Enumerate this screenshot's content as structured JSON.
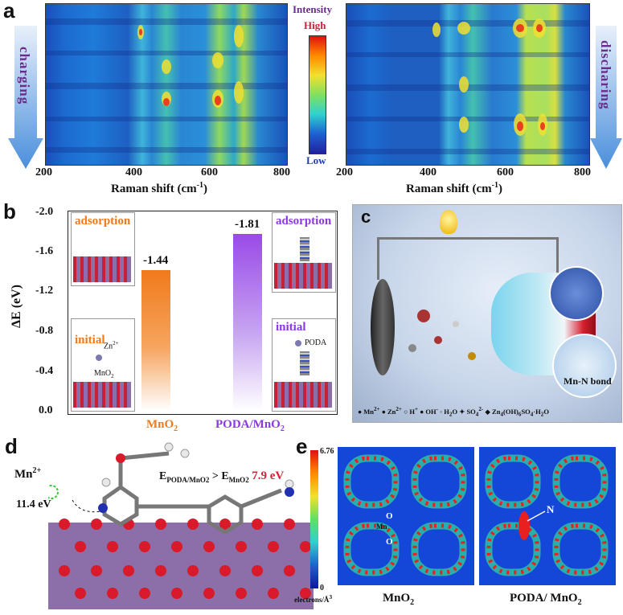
{
  "panel_a": {
    "label": "a",
    "left_arrow_text": "charging",
    "right_arrow_text": "discharing",
    "colorbar": {
      "title": "Intensity",
      "high": "High",
      "low": "Low"
    },
    "left_ticks": [
      "200",
      "400",
      "600",
      "800"
    ],
    "right_ticks": [
      "200",
      "400",
      "600",
      "800"
    ],
    "xlabel_left": "Raman shift (cm",
    "xlabel_right": "Raman shift (cm",
    "xlabel_sup": "-1",
    "xlabel_close": ")"
  },
  "panel_b": {
    "label": "b",
    "ylabel": "ΔE (eV)",
    "y_ticks": [
      "-2.0",
      "-1.6",
      "-1.2",
      "-0.8",
      "-0.4",
      "0.0"
    ],
    "inset_tl": "adsorption",
    "inset_bl": "initial",
    "inset_tr": "adsorption",
    "inset_br": "initial",
    "zn_label": "Zn",
    "zn_sup": "2+",
    "mno2_inset_label": "MnO",
    "mno2_inset_sub": "2",
    "poda_inset_label": "PODA",
    "cat1": "MnO",
    "cat1_sub": "2",
    "cat2": "PODA/MnO",
    "cat2_sub": "2"
  },
  "chart_data": {
    "type": "bar",
    "categories": [
      "MnO2",
      "PODA/MnO2"
    ],
    "values": [
      -1.44,
      -1.81
    ],
    "value_labels": [
      "-1.44",
      "-1.81"
    ],
    "ylabel": "ΔE (eV)",
    "ylim": [
      0.0,
      -2.0
    ]
  },
  "panel_c": {
    "label": "c",
    "bond_label": "Mn-N bond",
    "legend": [
      "Mn",
      "Zn",
      "H",
      "OH",
      "H",
      "O",
      "SO",
      "Zn",
      "(OH)",
      "SO",
      "·H",
      "O"
    ],
    "legend_sups": [
      "2+",
      "2+",
      "+",
      "-",
      "2-",
      "4"
    ]
  },
  "panel_d": {
    "label": "d",
    "mn_label": "Mn",
    "mn_sup": "2+",
    "energy_left": "11.4 eV",
    "energy_compare_a": "E",
    "energy_compare_a_sub": "PODA/MnO",
    "energy_compare_a_sub2": "2",
    "energy_compare_gt": " > E",
    "energy_compare_b_sub": "MnO",
    "energy_compare_b_sub2": "2",
    "energy_right": "7.9 eV"
  },
  "panel_e": {
    "label": "e",
    "cb_max": "6.76",
    "cb_min": "0",
    "cb_unit": "electrons/Å",
    "cb_unit_sup": "3",
    "left_map_o1": "O",
    "left_map_mn": "Mn",
    "left_map_o2": "O",
    "right_map_n": "N",
    "cap_left": "MnO",
    "cap_left_sub": "2",
    "cap_right": "PODA/ MnO",
    "cap_right_sub": "2"
  },
  "colors": {
    "orange": "#f07a1a",
    "purple": "#8a38e0",
    "red": "#d4203a"
  }
}
